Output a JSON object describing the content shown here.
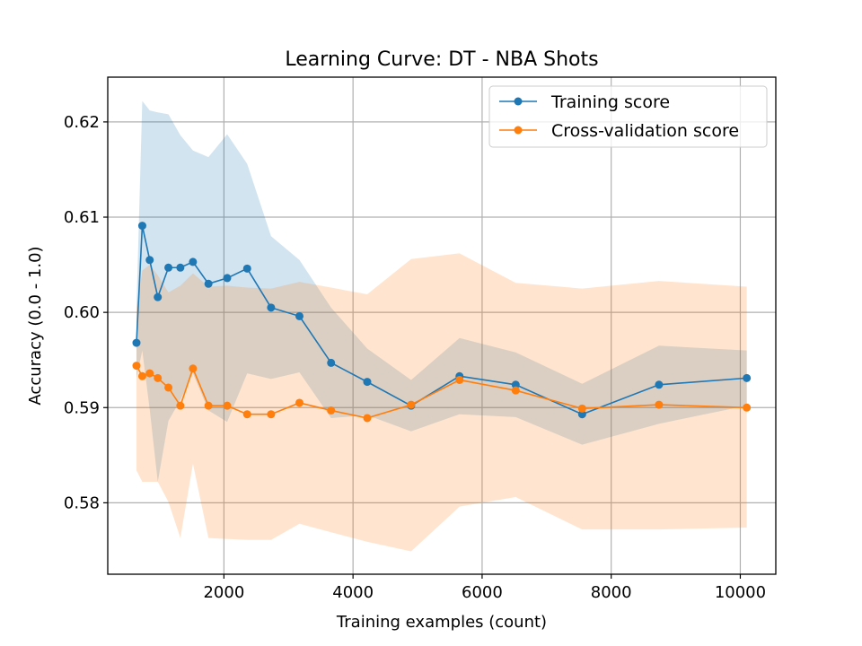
{
  "chart_data": {
    "type": "line",
    "title": "Learning Curve: DT - NBA Shots",
    "xlabel": "Training examples (count)",
    "ylabel": "Accuracy (0.0 - 1.0)",
    "xlim": [
      200,
      10550
    ],
    "ylim": [
      0.5725,
      0.6247
    ],
    "xticks": [
      2000,
      4000,
      6000,
      8000,
      10000
    ],
    "yticks": [
      0.58,
      0.59,
      0.6,
      0.61,
      0.62
    ],
    "xtick_labels": [
      "2000",
      "4000",
      "6000",
      "8000",
      "10000"
    ],
    "ytick_labels": [
      "0.58",
      "0.59",
      "0.60",
      "0.61",
      "0.62"
    ],
    "grid": true,
    "legend_position": "top-right",
    "x": [
      645,
      735,
      850,
      975,
      1140,
      1325,
      1520,
      1760,
      2050,
      2360,
      2730,
      3170,
      3660,
      4220,
      4900,
      5650,
      6520,
      7550,
      8740,
      10100
    ],
    "series": [
      {
        "name": "Training score",
        "color": "#1f77b4",
        "band_color": "#1f77b4",
        "values": [
          0.5968,
          0.6091,
          0.6055,
          0.6016,
          0.6047,
          0.6047,
          0.6053,
          0.603,
          0.6036,
          0.6046,
          0.6005,
          0.5996,
          0.5947,
          0.5927,
          0.5902,
          0.5933,
          0.5924,
          0.5893,
          0.5924,
          0.5931
        ],
        "upper": [
          0.6005,
          0.6222,
          0.6212,
          0.621,
          0.6208,
          0.6186,
          0.617,
          0.6163,
          0.6187,
          0.6156,
          0.608,
          0.6055,
          0.6005,
          0.5962,
          0.5929,
          0.5973,
          0.5958,
          0.5925,
          0.5965,
          0.596
        ],
        "lower": [
          0.5931,
          0.596,
          0.5898,
          0.5822,
          0.5886,
          0.5908,
          0.5936,
          0.5897,
          0.5885,
          0.5936,
          0.593,
          0.5937,
          0.5889,
          0.5892,
          0.5875,
          0.5893,
          0.589,
          0.5861,
          0.5883,
          0.5902
        ]
      },
      {
        "name": "Cross-validation score",
        "color": "#ff7f0e",
        "band_color": "#ff7f0e",
        "values": [
          0.5944,
          0.5933,
          0.5936,
          0.5931,
          0.5921,
          0.5902,
          0.5941,
          0.5902,
          0.5902,
          0.5893,
          0.5893,
          0.5905,
          0.5897,
          0.5889,
          0.5903,
          0.5929,
          0.5918,
          0.5899,
          0.5903,
          0.59
        ],
        "upper": [
          0.6004,
          0.6044,
          0.605,
          0.6039,
          0.6021,
          0.6028,
          0.6041,
          0.6027,
          0.6028,
          0.6026,
          0.6025,
          0.6032,
          0.6026,
          0.6019,
          0.6056,
          0.6062,
          0.6031,
          0.6025,
          0.6033,
          0.6027
        ],
        "lower": [
          0.5834,
          0.5822,
          0.5822,
          0.5822,
          0.5801,
          0.5763,
          0.5841,
          0.5763,
          0.5762,
          0.5761,
          0.5761,
          0.5778,
          0.5769,
          0.5759,
          0.5749,
          0.5796,
          0.5806,
          0.5772,
          0.5772,
          0.5774
        ]
      }
    ]
  }
}
